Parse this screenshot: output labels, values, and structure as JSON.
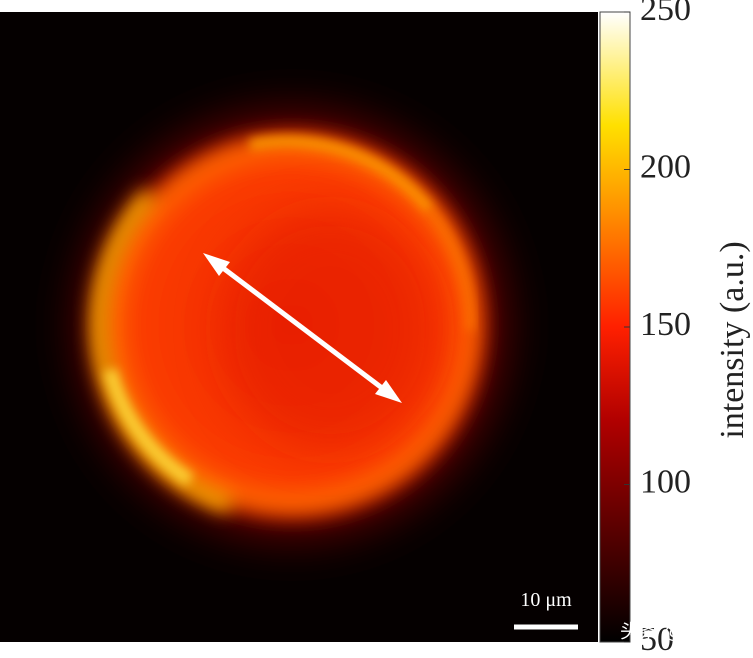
{
  "chart_data": {
    "type": "image",
    "colorbar": {
      "label": "intensity (a.u.)",
      "clim": [
        50,
        250
      ],
      "ticks": [
        50,
        100,
        150,
        200,
        250
      ]
    },
    "scalebar": "10 μm",
    "watermark": "头条 @博科园"
  }
}
